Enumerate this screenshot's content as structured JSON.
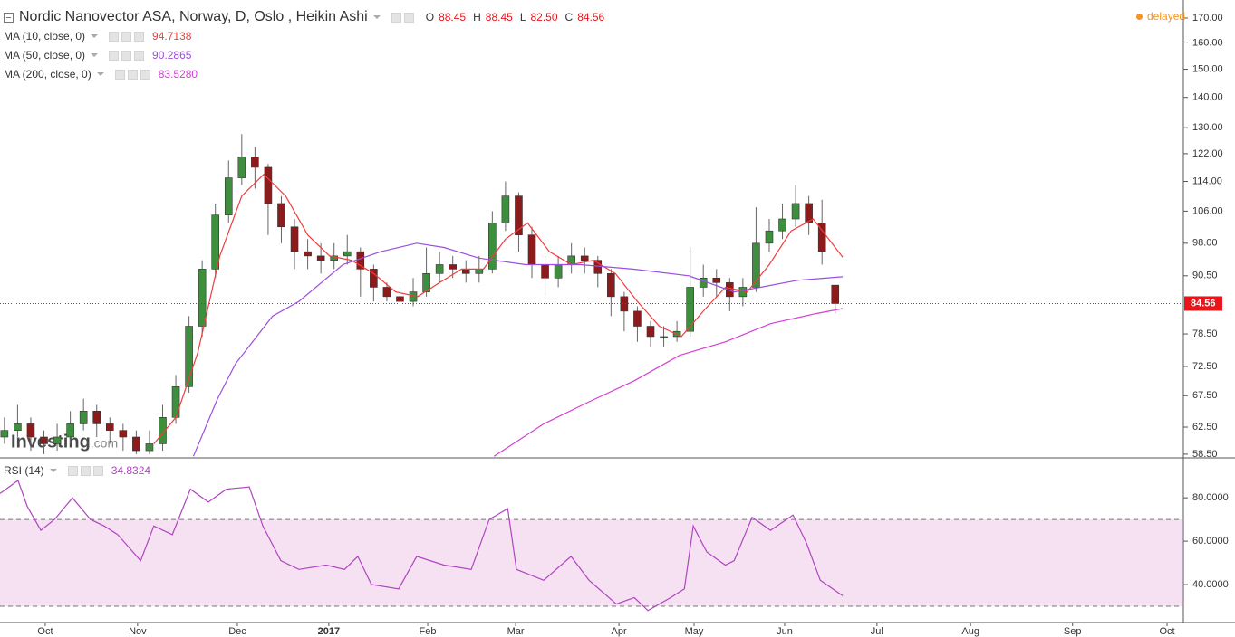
{
  "chart_data": [
    {
      "type": "candlestick",
      "title": "Nordic Nanovector ASA, Norway, D, Oslo , Heikin Ashi",
      "ohlc_legend": [
        {
          "label": "O",
          "value": "88.45"
        },
        {
          "label": "H",
          "value": "88.45"
        },
        {
          "label": "L",
          "value": "82.50"
        },
        {
          "label": "C",
          "value": "84.56"
        }
      ],
      "status": "delayed",
      "watermark": "Investing",
      "watermark_suffix": ".com",
      "xlim": [
        0,
        269
      ],
      "ylim": [
        58.1,
        177.7
      ],
      "log_scale": true,
      "yticks": [
        {
          "value": 170,
          "label": "170.00"
        },
        {
          "value": 160,
          "label": "160.00"
        },
        {
          "value": 150,
          "label": "150.00"
        },
        {
          "value": 140,
          "label": "140.00"
        },
        {
          "value": 130,
          "label": "130.00"
        },
        {
          "value": 122,
          "label": "122.00"
        },
        {
          "value": 114,
          "label": "114.00"
        },
        {
          "value": 106,
          "label": "106.00"
        },
        {
          "value": 98,
          "label": "98.00"
        },
        {
          "value": 90.5,
          "label": "90.50"
        },
        {
          "value": 78.5,
          "label": "78.50"
        },
        {
          "value": 72.5,
          "label": "72.50"
        },
        {
          "value": 67.5,
          "label": "67.50"
        },
        {
          "value": 62.5,
          "label": "62.50"
        },
        {
          "value": 58.5,
          "label": "58.50"
        }
      ],
      "up_color": "#3d8f3d",
      "down_color": "#8e1b1b",
      "last_price_color": "#e8161b",
      "x": [
        1,
        4,
        7,
        10,
        13,
        16,
        19,
        22,
        25,
        28,
        31,
        34,
        37,
        40,
        43,
        46,
        49,
        52,
        55,
        58,
        61,
        64,
        67,
        70,
        73,
        76,
        79,
        82,
        85,
        88,
        91,
        94,
        97,
        100,
        103,
        106,
        109,
        112,
        115,
        118,
        121,
        124,
        127,
        130,
        133,
        136,
        139,
        142,
        145,
        148,
        151,
        154,
        157,
        160,
        163,
        166,
        169,
        172,
        175,
        178,
        181,
        184,
        187,
        190
      ],
      "ohlc": [
        [
          61,
          64,
          60,
          62
        ],
        [
          62,
          66,
          61,
          63
        ],
        [
          63,
          64,
          59,
          61
        ],
        [
          61,
          62,
          58.5,
          60
        ],
        [
          60,
          63,
          59,
          61
        ],
        [
          61,
          65,
          60,
          63
        ],
        [
          63,
          67,
          62,
          65
        ],
        [
          65,
          66,
          61,
          63
        ],
        [
          63,
          64,
          60,
          62
        ],
        [
          62,
          63,
          59,
          61
        ],
        [
          61,
          62,
          58.5,
          59
        ],
        [
          59,
          62,
          58.5,
          60
        ],
        [
          60,
          66,
          59,
          64
        ],
        [
          64,
          71,
          63,
          69
        ],
        [
          69,
          82,
          68,
          80
        ],
        [
          80,
          94,
          78,
          92
        ],
        [
          92,
          108,
          90,
          105
        ],
        [
          105,
          120,
          103,
          115
        ],
        [
          115,
          128,
          113,
          121
        ],
        [
          121,
          124,
          112,
          118
        ],
        [
          118,
          119,
          100,
          108
        ],
        [
          108,
          110,
          98,
          102
        ],
        [
          102,
          104,
          92,
          96
        ],
        [
          96,
          99,
          92,
          95
        ],
        [
          95,
          98,
          91,
          94
        ],
        [
          94,
          98,
          92,
          95
        ],
        [
          95,
          100,
          93,
          96
        ],
        [
          96,
          97,
          86,
          92
        ],
        [
          92,
          93,
          85,
          88
        ],
        [
          88,
          89,
          85,
          86
        ],
        [
          86,
          88,
          84,
          85
        ],
        [
          85,
          90,
          84,
          87
        ],
        [
          87,
          97,
          86,
          91
        ],
        [
          91,
          96,
          89,
          93
        ],
        [
          93,
          95,
          90,
          92
        ],
        [
          92,
          94,
          89,
          91
        ],
        [
          91,
          95,
          89,
          92
        ],
        [
          92,
          106,
          91,
          103
        ],
        [
          103,
          114,
          101,
          110
        ],
        [
          110,
          111,
          96,
          100
        ],
        [
          100,
          102,
          90,
          93
        ],
        [
          93,
          95,
          86,
          90
        ],
        [
          90,
          95,
          88,
          93
        ],
        [
          93,
          98,
          91,
          95
        ],
        [
          95,
          97,
          91,
          94
        ],
        [
          94,
          95,
          88,
          91
        ],
        [
          91,
          92,
          82,
          86
        ],
        [
          86,
          87,
          79,
          83
        ],
        [
          83,
          84,
          77,
          80
        ],
        [
          80,
          81,
          76,
          78
        ],
        [
          78,
          80,
          76,
          78
        ],
        [
          78,
          81,
          77,
          79
        ],
        [
          79,
          97,
          78,
          88
        ],
        [
          88,
          93,
          86,
          90
        ],
        [
          90,
          92,
          86,
          89
        ],
        [
          89,
          90,
          83,
          86
        ],
        [
          86,
          90,
          84,
          88
        ],
        [
          88,
          107,
          87,
          98
        ],
        [
          98,
          104,
          96,
          101
        ],
        [
          101,
          108,
          99,
          104
        ],
        [
          104,
          113,
          102,
          108
        ],
        [
          108,
          110,
          100,
          103
        ],
        [
          103,
          109,
          93,
          96
        ],
        [
          88.45,
          88.45,
          82.5,
          84.56
        ]
      ],
      "overlays": [
        {
          "name": "MA (10, close, 0)",
          "color": "#f03c3c",
          "legend_value": "94.7138",
          "x": [
            35,
            40,
            45,
            50,
            55,
            60,
            65,
            70,
            75,
            80,
            85,
            90,
            95,
            100,
            105,
            110,
            115,
            120,
            125,
            130,
            135,
            140,
            145,
            150,
            155,
            160,
            165,
            170,
            175,
            180,
            185,
            191.7
          ],
          "values": [
            60,
            64,
            75,
            95,
            110,
            116,
            110,
            100,
            95,
            94,
            91,
            87,
            86,
            89,
            92,
            92,
            99,
            103,
            96,
            93,
            94,
            91,
            85,
            80,
            78,
            83,
            88,
            87,
            93,
            101,
            104,
            94.7138
          ]
        },
        {
          "name": "MA (50, close, 0)",
          "color": "#9b4de0",
          "legend_value": "90.2865",
          "x": [
            44,
            49.5,
            53.6,
            62,
            68,
            78,
            86.6,
            94.8,
            101,
            109,
            119.6,
            132,
            144,
            156.7,
            167,
            173,
            181.4,
            191.7
          ],
          "values": [
            58.2,
            67,
            73,
            82,
            85,
            93,
            96,
            98,
            97,
            94.5,
            93,
            93,
            92,
            90.5,
            87,
            88,
            89.5,
            90.2865
          ]
        },
        {
          "name": "MA (200, close, 0)",
          "color": "#d53fd5",
          "legend_value": "83.5280",
          "x": [
            112.4,
            123.7,
            134,
            144.3,
            154.6,
            165,
            175.3,
            185.6,
            191.7
          ],
          "values": [
            58.2,
            63,
            66.5,
            70,
            74.5,
            77,
            80.5,
            82.5,
            83.528
          ]
        }
      ]
    },
    {
      "type": "line",
      "xlim": [
        0,
        269
      ],
      "ylim": [
        22.5,
        98
      ],
      "yticks": [
        {
          "value": 80,
          "label": "80.0000"
        },
        {
          "value": 60,
          "label": "60.0000"
        },
        {
          "value": 40,
          "label": "40.0000"
        }
      ],
      "band": [
        30,
        70
      ],
      "band_color": "#f5e1f2",
      "xticks": [
        {
          "value": 10.3,
          "label": "Oct"
        },
        {
          "value": 31.3,
          "label": "Nov"
        },
        {
          "value": 54,
          "label": "Dec"
        },
        {
          "value": 74.8,
          "label": "2017",
          "bold": true
        },
        {
          "value": 97.3,
          "label": "Feb"
        },
        {
          "value": 117.3,
          "label": "Mar"
        },
        {
          "value": 140.8,
          "label": "Apr"
        },
        {
          "value": 157.9,
          "label": "May"
        },
        {
          "value": 178.5,
          "label": "Jun"
        },
        {
          "value": 199.5,
          "label": "Jul"
        },
        {
          "value": 220.8,
          "label": "Aug"
        },
        {
          "value": 244,
          "label": "Sep"
        },
        {
          "value": 265.5,
          "label": "Oct"
        }
      ],
      "series": [
        {
          "name": "RSI (14)",
          "color": "#b044c0",
          "legend_value": "34.8324",
          "x": [
            0,
            4.1,
            6.2,
            9.3,
            12.4,
            16.5,
            20.6,
            23.7,
            26.8,
            32,
            35,
            39.2,
            43.3,
            47.4,
            51.5,
            56.7,
            59.8,
            63.9,
            68,
            74.2,
            78.4,
            81.4,
            84.5,
            90.7,
            94.8,
            101,
            107.2,
            111.3,
            115.5,
            117.5,
            123.7,
            129.9,
            134,
            140.2,
            144.3,
            147.4,
            152.6,
            155.7,
            157.7,
            160.8,
            165,
            167,
            171.1,
            175.3,
            180.4,
            183.5,
            186.6,
            191.7
          ],
          "values": [
            82,
            88,
            76,
            65,
            70,
            80,
            70,
            67,
            63,
            51,
            67,
            63,
            84,
            78,
            84,
            85,
            67,
            51,
            47,
            49,
            47,
            53,
            40,
            38,
            53,
            49,
            47,
            70,
            75,
            47,
            42,
            53,
            42,
            31,
            34,
            28,
            34,
            38,
            67,
            55,
            49,
            51,
            71,
            65,
            72,
            59,
            42,
            34.8324
          ]
        }
      ]
    }
  ]
}
